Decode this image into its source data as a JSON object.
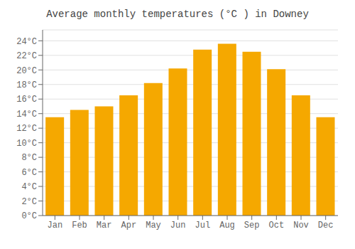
{
  "chart_data": {
    "type": "bar",
    "title": "Average monthly temperatures (°C ) in Downey",
    "categories": [
      "Jan",
      "Feb",
      "Mar",
      "Apr",
      "May",
      "Jun",
      "Jul",
      "Aug",
      "Sep",
      "Oct",
      "Nov",
      "Dec"
    ],
    "values": [
      13.5,
      14.5,
      15.0,
      16.5,
      18.2,
      20.2,
      22.8,
      23.6,
      22.5,
      20.1,
      16.5,
      13.5
    ],
    "color": "#F5A800",
    "ylim": [
      0,
      25.5
    ],
    "yticks": [
      {
        "value": 0,
        "label": "0°C"
      },
      {
        "value": 2,
        "label": "2°C"
      },
      {
        "value": 4,
        "label": "4°C"
      },
      {
        "value": 6,
        "label": "6°C"
      },
      {
        "value": 8,
        "label": "8°C"
      },
      {
        "value": 10,
        "label": "10°C"
      },
      {
        "value": 12,
        "label": "12°C"
      },
      {
        "value": 14,
        "label": "14°C"
      },
      {
        "value": 16,
        "label": "16°C"
      },
      {
        "value": 18,
        "label": "18°C"
      },
      {
        "value": 20,
        "label": "20°C"
      },
      {
        "value": 22,
        "label": "22°C"
      },
      {
        "value": 24,
        "label": "24°C"
      }
    ],
    "grid": true
  }
}
